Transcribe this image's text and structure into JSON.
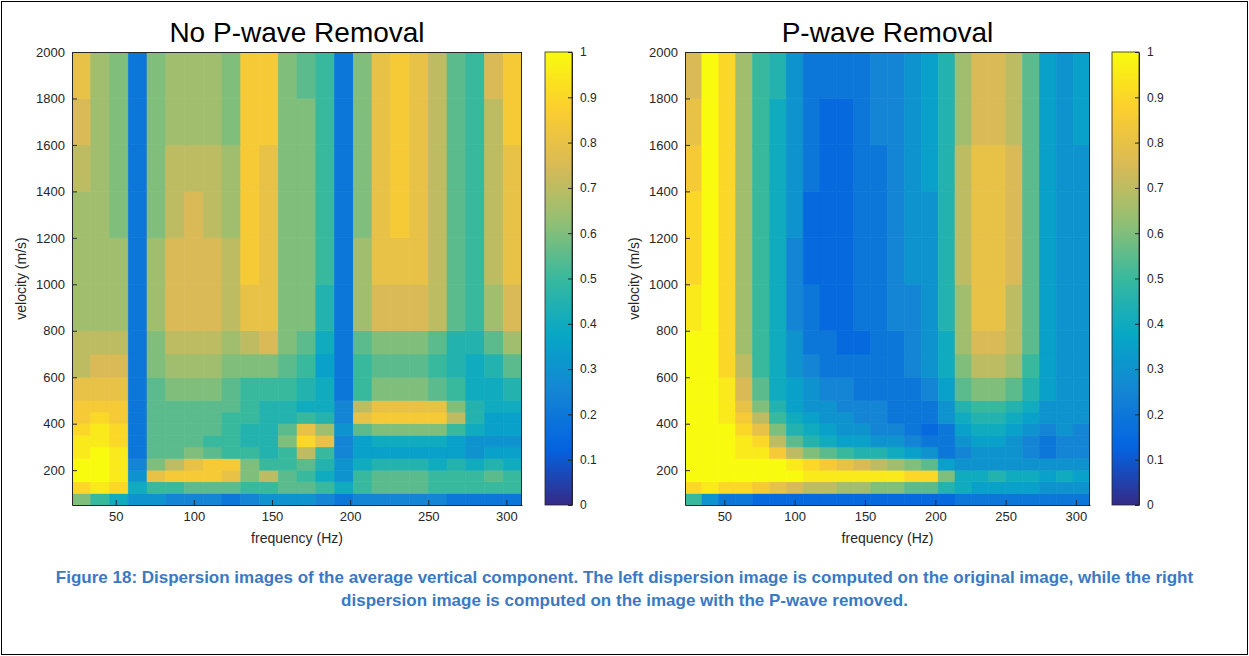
{
  "chart_data": [
    {
      "type": "heatmap",
      "title": "No P-wave Removal",
      "x_label": "frequency (Hz)",
      "y_label": "velocity (m/s)",
      "xlim": [
        22,
        310
      ],
      "ylim": [
        50,
        2000
      ],
      "xticks": [
        50,
        100,
        150,
        200,
        250,
        300
      ],
      "yticks": [
        200,
        400,
        600,
        800,
        1000,
        1200,
        1400,
        1600,
        1800,
        2000
      ],
      "x_edges": [
        22,
        34,
        46,
        58,
        70,
        82,
        94,
        106,
        118,
        130,
        142,
        154,
        166,
        178,
        190,
        202,
        214,
        226,
        238,
        250,
        262,
        274,
        286,
        298,
        310
      ],
      "y_edges": [
        50,
        100,
        150,
        200,
        250,
        300,
        350,
        400,
        450,
        500,
        600,
        700,
        800,
        1000,
        1200,
        1400,
        1600,
        1800,
        2000
      ],
      "cells": [
        [
          0.6,
          0.5,
          0.4,
          0.3,
          0.3,
          0.25,
          0.25,
          0.25,
          0.2,
          0.25,
          0.3,
          0.3,
          0.3,
          0.25,
          0.2,
          0.25,
          0.25,
          0.25,
          0.25,
          0.25,
          0.2,
          0.2,
          0.2,
          0.2
        ],
        [
          0.9,
          0.95,
          0.9,
          0.4,
          0.5,
          0.5,
          0.55,
          0.55,
          0.55,
          0.5,
          0.5,
          0.55,
          0.55,
          0.5,
          0.4,
          0.5,
          0.55,
          0.55,
          0.55,
          0.5,
          0.5,
          0.5,
          0.5,
          0.5
        ],
        [
          1,
          1,
          0.95,
          0.3,
          0.8,
          0.85,
          0.85,
          0.85,
          0.8,
          0.6,
          0.7,
          0.55,
          0.5,
          0.4,
          0.3,
          0.5,
          0.55,
          0.55,
          0.55,
          0.5,
          0.5,
          0.5,
          0.55,
          0.5
        ],
        [
          1,
          1,
          0.95,
          0.25,
          0.6,
          0.7,
          0.8,
          0.85,
          0.85,
          0.6,
          0.5,
          0.5,
          0.55,
          0.45,
          0.3,
          0.4,
          0.45,
          0.45,
          0.45,
          0.4,
          0.45,
          0.4,
          0.45,
          0.4
        ],
        [
          0.95,
          1,
          0.95,
          0.2,
          0.55,
          0.55,
          0.6,
          0.55,
          0.5,
          0.5,
          0.45,
          0.5,
          0.7,
          0.5,
          0.25,
          0.35,
          0.35,
          0.35,
          0.35,
          0.35,
          0.35,
          0.3,
          0.35,
          0.35
        ],
        [
          0.95,
          0.95,
          0.9,
          0.2,
          0.55,
          0.55,
          0.55,
          0.5,
          0.5,
          0.45,
          0.45,
          0.6,
          0.9,
          0.8,
          0.25,
          0.35,
          0.4,
          0.4,
          0.4,
          0.4,
          0.35,
          0.3,
          0.3,
          0.3
        ],
        [
          0.9,
          0.95,
          0.9,
          0.2,
          0.55,
          0.55,
          0.55,
          0.55,
          0.5,
          0.45,
          0.45,
          0.55,
          0.8,
          0.65,
          0.3,
          0.55,
          0.6,
          0.6,
          0.6,
          0.6,
          0.5,
          0.4,
          0.35,
          0.35
        ],
        [
          0.85,
          0.9,
          0.85,
          0.2,
          0.55,
          0.55,
          0.55,
          0.55,
          0.5,
          0.5,
          0.45,
          0.45,
          0.5,
          0.45,
          0.25,
          0.8,
          0.85,
          0.85,
          0.85,
          0.85,
          0.7,
          0.45,
          0.35,
          0.35
        ],
        [
          0.85,
          0.85,
          0.85,
          0.2,
          0.55,
          0.55,
          0.55,
          0.55,
          0.55,
          0.5,
          0.45,
          0.45,
          0.4,
          0.4,
          0.25,
          0.7,
          0.8,
          0.8,
          0.8,
          0.8,
          0.6,
          0.45,
          0.4,
          0.4
        ],
        [
          0.8,
          0.8,
          0.8,
          0.2,
          0.55,
          0.6,
          0.6,
          0.6,
          0.55,
          0.5,
          0.5,
          0.5,
          0.45,
          0.4,
          0.2,
          0.5,
          0.6,
          0.6,
          0.6,
          0.55,
          0.5,
          0.4,
          0.4,
          0.45
        ],
        [
          0.7,
          0.75,
          0.75,
          0.2,
          0.6,
          0.65,
          0.65,
          0.65,
          0.6,
          0.6,
          0.6,
          0.55,
          0.5,
          0.35,
          0.2,
          0.5,
          0.55,
          0.55,
          0.55,
          0.5,
          0.45,
          0.4,
          0.45,
          0.55
        ],
        [
          0.7,
          0.7,
          0.7,
          0.2,
          0.6,
          0.7,
          0.7,
          0.7,
          0.65,
          0.7,
          0.75,
          0.6,
          0.55,
          0.4,
          0.2,
          0.55,
          0.6,
          0.6,
          0.6,
          0.55,
          0.45,
          0.45,
          0.55,
          0.65
        ],
        [
          0.65,
          0.65,
          0.65,
          0.2,
          0.65,
          0.75,
          0.75,
          0.75,
          0.7,
          0.8,
          0.8,
          0.6,
          0.6,
          0.45,
          0.2,
          0.65,
          0.75,
          0.75,
          0.75,
          0.7,
          0.55,
          0.5,
          0.65,
          0.75
        ],
        [
          0.65,
          0.65,
          0.65,
          0.2,
          0.65,
          0.75,
          0.75,
          0.75,
          0.7,
          0.85,
          0.8,
          0.6,
          0.6,
          0.5,
          0.2,
          0.65,
          0.8,
          0.8,
          0.8,
          0.7,
          0.55,
          0.5,
          0.7,
          0.8
        ],
        [
          0.65,
          0.65,
          0.6,
          0.2,
          0.6,
          0.7,
          0.75,
          0.7,
          0.65,
          0.85,
          0.8,
          0.6,
          0.6,
          0.5,
          0.2,
          0.6,
          0.8,
          0.85,
          0.8,
          0.7,
          0.55,
          0.5,
          0.7,
          0.8
        ],
        [
          0.7,
          0.65,
          0.6,
          0.2,
          0.6,
          0.7,
          0.7,
          0.7,
          0.65,
          0.85,
          0.8,
          0.6,
          0.6,
          0.5,
          0.2,
          0.6,
          0.8,
          0.85,
          0.8,
          0.7,
          0.55,
          0.5,
          0.7,
          0.8
        ],
        [
          0.75,
          0.65,
          0.6,
          0.2,
          0.6,
          0.65,
          0.65,
          0.65,
          0.6,
          0.85,
          0.85,
          0.6,
          0.6,
          0.5,
          0.2,
          0.6,
          0.8,
          0.85,
          0.8,
          0.7,
          0.55,
          0.5,
          0.7,
          0.85
        ],
        [
          0.8,
          0.65,
          0.6,
          0.2,
          0.6,
          0.65,
          0.65,
          0.65,
          0.6,
          0.85,
          0.85,
          0.6,
          0.55,
          0.5,
          0.2,
          0.6,
          0.8,
          0.85,
          0.8,
          0.7,
          0.55,
          0.5,
          0.75,
          0.85
        ]
      ],
      "colorbar": {
        "range": [
          0,
          1
        ],
        "ticks": [
          0,
          0.1,
          0.2,
          0.3,
          0.4,
          0.5,
          0.6,
          0.7,
          0.8,
          0.9,
          1
        ]
      }
    },
    {
      "type": "heatmap",
      "title": "P-wave Removal",
      "x_label": "frequency (Hz)",
      "y_label": "velocity (m/s)",
      "xlim": [
        22,
        310
      ],
      "ylim": [
        50,
        2000
      ],
      "xticks": [
        50,
        100,
        150,
        200,
        250,
        300
      ],
      "yticks": [
        200,
        400,
        600,
        800,
        1000,
        1200,
        1400,
        1600,
        1800,
        2000
      ],
      "x_edges": [
        22,
        34,
        46,
        58,
        70,
        82,
        94,
        106,
        118,
        130,
        142,
        154,
        166,
        178,
        190,
        202,
        214,
        226,
        238,
        250,
        262,
        274,
        286,
        298,
        310
      ],
      "y_edges": [
        50,
        100,
        150,
        200,
        250,
        300,
        350,
        400,
        450,
        500,
        600,
        700,
        800,
        1000,
        1200,
        1400,
        1600,
        1800,
        2000
      ],
      "cells": [
        [
          0.5,
          0.3,
          0.2,
          0.2,
          0.15,
          0.15,
          0.15,
          0.15,
          0.15,
          0.15,
          0.15,
          0.15,
          0.15,
          0.15,
          0.15,
          0.15,
          0.2,
          0.2,
          0.2,
          0.2,
          0.2,
          0.2,
          0.2,
          0.2
        ],
        [
          0.9,
          0.95,
          0.9,
          0.9,
          0.85,
          0.8,
          0.75,
          0.7,
          0.7,
          0.65,
          0.65,
          0.6,
          0.6,
          0.55,
          0.55,
          0.45,
          0.4,
          0.35,
          0.35,
          0.35,
          0.35,
          0.3,
          0.3,
          0.3
        ],
        [
          1,
          1,
          1,
          1,
          1,
          1,
          1,
          0.95,
          0.95,
          0.95,
          0.95,
          0.95,
          0.95,
          0.9,
          0.9,
          0.6,
          0.4,
          0.4,
          0.45,
          0.4,
          0.4,
          0.35,
          0.4,
          0.35
        ],
        [
          1,
          1,
          1,
          1,
          1,
          1,
          0.95,
          0.9,
          0.85,
          0.8,
          0.75,
          0.7,
          0.65,
          0.6,
          0.55,
          0.35,
          0.3,
          0.3,
          0.3,
          0.3,
          0.3,
          0.3,
          0.3,
          0.3
        ],
        [
          1,
          1,
          1,
          0.95,
          0.95,
          0.85,
          0.7,
          0.6,
          0.55,
          0.5,
          0.45,
          0.45,
          0.4,
          0.35,
          0.3,
          0.2,
          0.25,
          0.3,
          0.3,
          0.3,
          0.25,
          0.2,
          0.25,
          0.25
        ],
        [
          1,
          1,
          1,
          0.95,
          0.9,
          0.7,
          0.55,
          0.45,
          0.4,
          0.35,
          0.35,
          0.3,
          0.3,
          0.25,
          0.2,
          0.2,
          0.3,
          0.35,
          0.35,
          0.3,
          0.25,
          0.2,
          0.25,
          0.25
        ],
        [
          1,
          1,
          1,
          0.9,
          0.8,
          0.6,
          0.45,
          0.4,
          0.35,
          0.3,
          0.3,
          0.25,
          0.25,
          0.2,
          0.15,
          0.2,
          0.35,
          0.4,
          0.4,
          0.35,
          0.3,
          0.25,
          0.3,
          0.25
        ],
        [
          1,
          1,
          0.95,
          0.85,
          0.7,
          0.5,
          0.4,
          0.35,
          0.3,
          0.3,
          0.25,
          0.25,
          0.2,
          0.2,
          0.2,
          0.3,
          0.4,
          0.45,
          0.45,
          0.4,
          0.35,
          0.3,
          0.3,
          0.3
        ],
        [
          1,
          1,
          0.95,
          0.8,
          0.6,
          0.45,
          0.35,
          0.3,
          0.3,
          0.25,
          0.25,
          0.25,
          0.2,
          0.2,
          0.2,
          0.3,
          0.45,
          0.5,
          0.5,
          0.45,
          0.4,
          0.3,
          0.3,
          0.3
        ],
        [
          1,
          1,
          0.95,
          0.75,
          0.55,
          0.4,
          0.35,
          0.3,
          0.25,
          0.25,
          0.2,
          0.2,
          0.2,
          0.2,
          0.25,
          0.35,
          0.55,
          0.6,
          0.6,
          0.55,
          0.45,
          0.35,
          0.3,
          0.3
        ],
        [
          1,
          1,
          0.9,
          0.7,
          0.5,
          0.4,
          0.3,
          0.25,
          0.2,
          0.2,
          0.2,
          0.2,
          0.2,
          0.25,
          0.3,
          0.4,
          0.6,
          0.7,
          0.7,
          0.65,
          0.5,
          0.35,
          0.3,
          0.3
        ],
        [
          1,
          1,
          0.9,
          0.65,
          0.5,
          0.4,
          0.3,
          0.2,
          0.2,
          0.15,
          0.15,
          0.2,
          0.2,
          0.25,
          0.3,
          0.4,
          0.65,
          0.75,
          0.75,
          0.7,
          0.55,
          0.35,
          0.3,
          0.3
        ],
        [
          0.95,
          1,
          0.9,
          0.65,
          0.5,
          0.4,
          0.25,
          0.2,
          0.15,
          0.15,
          0.2,
          0.2,
          0.25,
          0.25,
          0.3,
          0.45,
          0.65,
          0.8,
          0.8,
          0.7,
          0.55,
          0.35,
          0.3,
          0.3
        ],
        [
          0.9,
          1,
          0.9,
          0.65,
          0.5,
          0.4,
          0.25,
          0.15,
          0.15,
          0.15,
          0.2,
          0.2,
          0.25,
          0.3,
          0.3,
          0.45,
          0.7,
          0.8,
          0.8,
          0.75,
          0.55,
          0.35,
          0.3,
          0.3
        ],
        [
          0.9,
          1,
          0.9,
          0.65,
          0.5,
          0.4,
          0.3,
          0.15,
          0.15,
          0.15,
          0.2,
          0.2,
          0.25,
          0.3,
          0.3,
          0.45,
          0.7,
          0.8,
          0.8,
          0.75,
          0.55,
          0.35,
          0.3,
          0.3
        ],
        [
          0.85,
          1,
          0.9,
          0.65,
          0.5,
          0.4,
          0.3,
          0.2,
          0.15,
          0.15,
          0.2,
          0.2,
          0.25,
          0.3,
          0.35,
          0.45,
          0.7,
          0.8,
          0.8,
          0.75,
          0.55,
          0.35,
          0.3,
          0.3
        ],
        [
          0.8,
          1,
          0.9,
          0.65,
          0.5,
          0.4,
          0.3,
          0.2,
          0.15,
          0.15,
          0.2,
          0.25,
          0.25,
          0.3,
          0.35,
          0.45,
          0.65,
          0.75,
          0.75,
          0.7,
          0.55,
          0.35,
          0.3,
          0.35
        ],
        [
          0.75,
          1,
          0.9,
          0.65,
          0.5,
          0.45,
          0.3,
          0.2,
          0.2,
          0.2,
          0.2,
          0.25,
          0.25,
          0.3,
          0.35,
          0.45,
          0.65,
          0.75,
          0.75,
          0.7,
          0.55,
          0.35,
          0.3,
          0.35
        ]
      ],
      "colorbar": {
        "range": [
          0,
          1
        ],
        "ticks": [
          0,
          0.1,
          0.2,
          0.3,
          0.4,
          0.5,
          0.6,
          0.7,
          0.8,
          0.9,
          1
        ]
      }
    }
  ],
  "caption": "Figure 18: Dispersion images of the average vertical component. The left dispersion image is computed on the original image, while the right dispersion image is computed on the image with the P-wave removed."
}
